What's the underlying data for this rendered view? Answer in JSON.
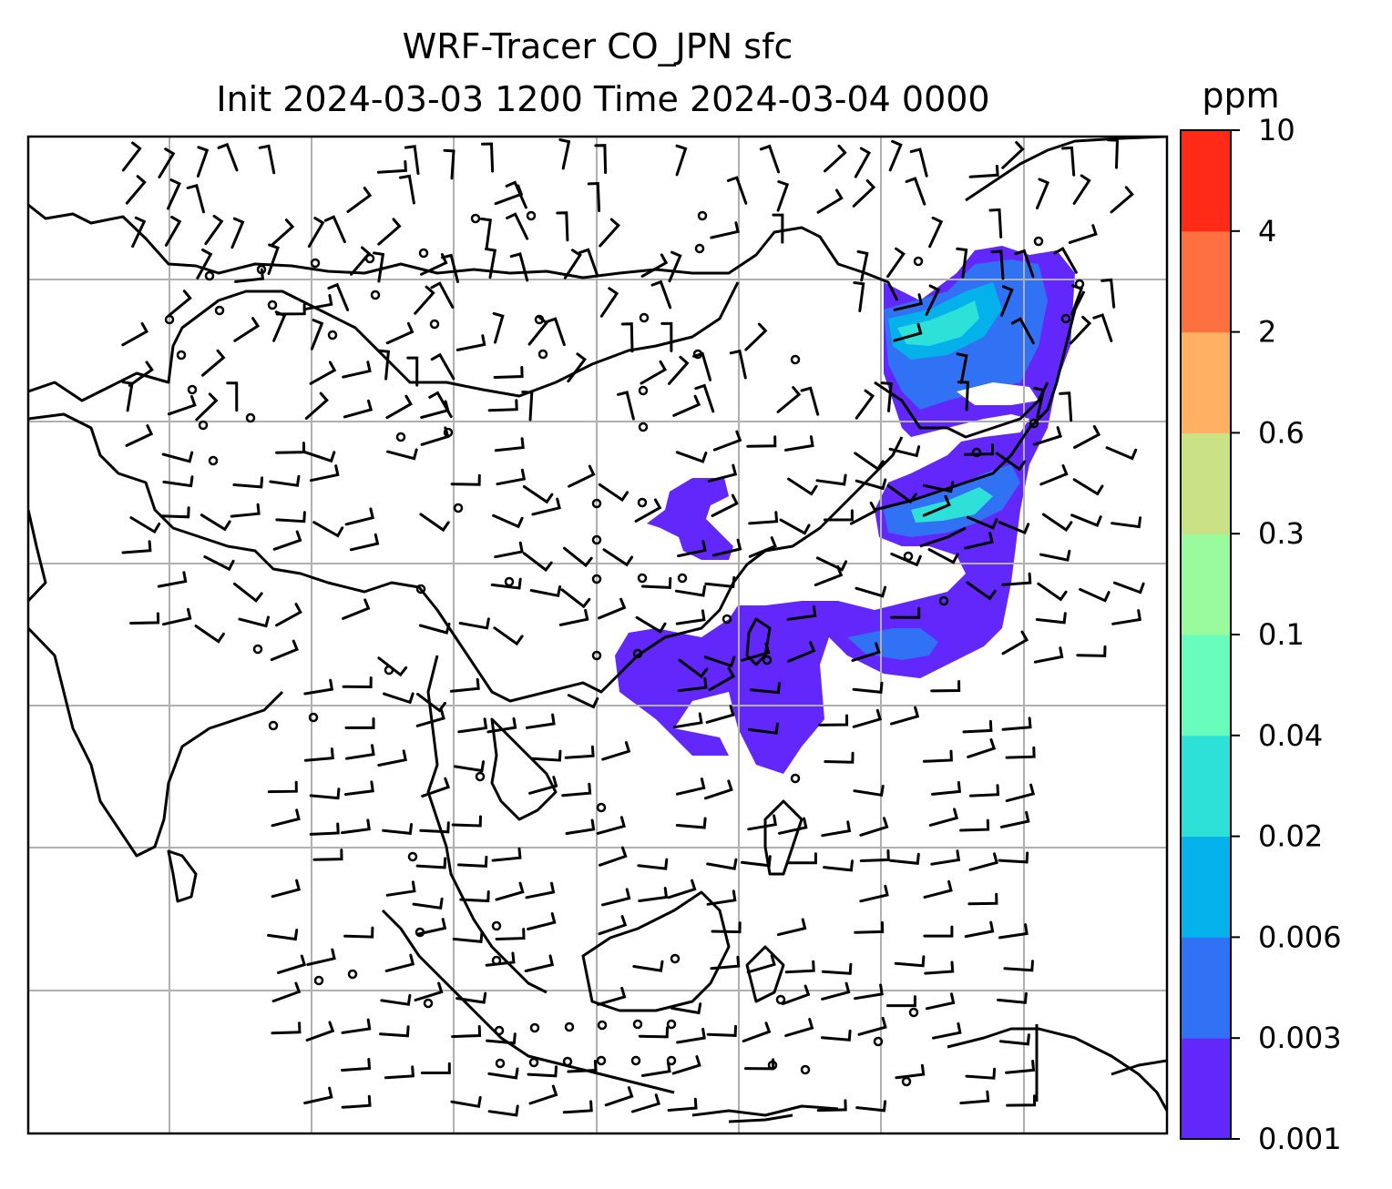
{
  "chart_data": {
    "type": "filled-contour map with wind barbs",
    "title_line1": "WRF-Tracer CO_JPN sfc",
    "title_line2": "Init 2024-03-03 1200 Time 2024-03-04 0000",
    "colorbar": {
      "unit": "ppm",
      "levels": [
        "0.001",
        "0.003",
        "0.006",
        "0.02",
        "0.04",
        "0.1",
        "0.3",
        "0.6",
        "2",
        "4",
        "10"
      ],
      "colors": [
        "#6127fb",
        "#3171f4",
        "#05b1ea",
        "#2ee1d8",
        "#68fcbd",
        "#9afb9e",
        "#cbe185",
        "#ffb062",
        "#ff7040",
        "#ff2a17"
      ]
    },
    "gridlines": true,
    "coastlines": true,
    "wind_barbs": true,
    "colors": {
      "land_outline": "#000000",
      "grid": "#b0b0b0",
      "field_low": "#6127fb"
    }
  }
}
